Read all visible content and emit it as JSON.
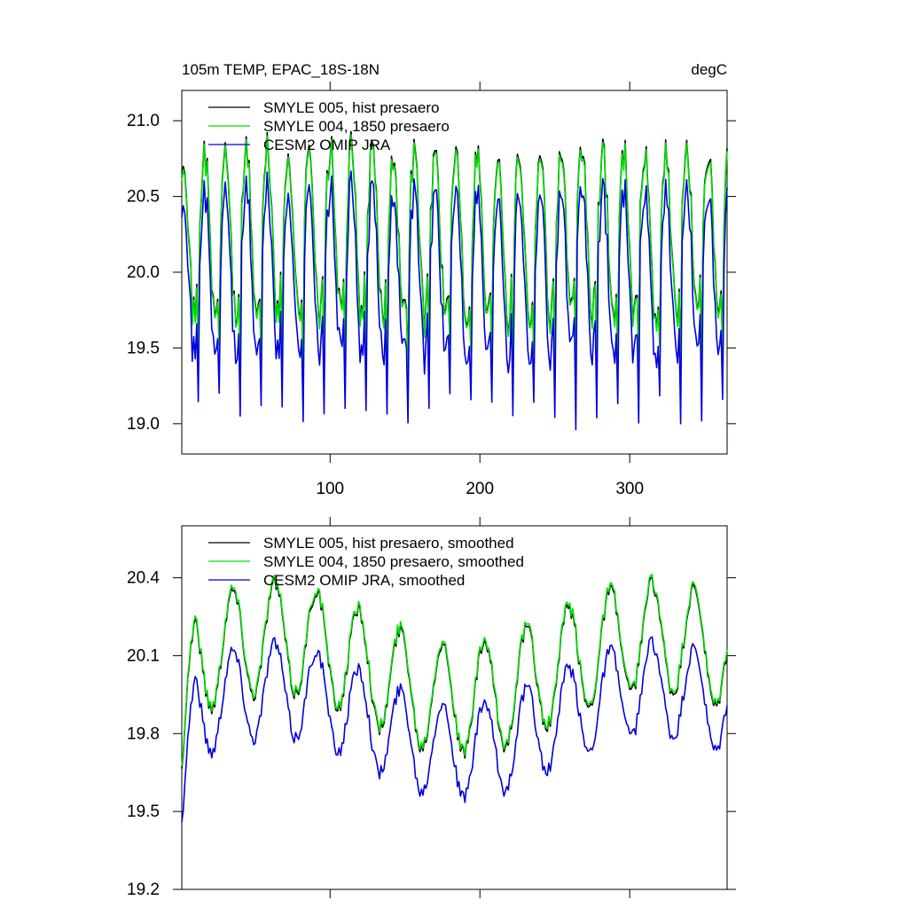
{
  "chart_data": [
    {
      "type": "line",
      "title_left": "105m TEMP, EPAC_18S-18N",
      "title_right": "degC",
      "xlabel": "",
      "ylabel": "",
      "xlim": [
        1,
        365
      ],
      "ylim": [
        18.8,
        21.2
      ],
      "xticks": [
        100,
        200,
        300
      ],
      "yticks": [
        19.0,
        19.5,
        20.0,
        20.5,
        21.0
      ],
      "ytick_labels": [
        "19.0",
        "19.5",
        "20.0",
        "20.5",
        "21.0"
      ],
      "legend_position": "top-left",
      "series": [
        {
          "name": "SMYLE 005, hist presaero",
          "color": "#000000",
          "style": "raw",
          "base": 20.0,
          "amp": 0.55,
          "offset": 0.26,
          "lowAmp": 0.85
        },
        {
          "name": "SMYLE 004, 1850 presaero",
          "color": "#00dd00",
          "style": "raw",
          "base": 20.0,
          "amp": 0.55,
          "offset": 0.24,
          "lowAmp": 0.85
        },
        {
          "name": "CESM2 OMIP JRA",
          "color": "#0000dd",
          "style": "raw",
          "base": 20.0,
          "amp": 0.55,
          "offset": 0.0,
          "lowAmp": 0.95
        }
      ]
    },
    {
      "type": "line",
      "title_left": "",
      "title_right": "",
      "xlabel": "",
      "ylabel": "",
      "xlim": [
        1,
        365
      ],
      "ylim": [
        19.2,
        20.6
      ],
      "xticks": [
        100,
        200,
        300
      ],
      "yticks": [
        19.2,
        19.5,
        19.8,
        20.1,
        20.4
      ],
      "ytick_labels": [
        "19.2",
        "19.5",
        "19.8",
        "20.1",
        "20.4"
      ],
      "legend_position": "top-left",
      "series": [
        {
          "name": "SMYLE 005, hist presaero, smoothed",
          "color": "#000000",
          "style": "smooth",
          "base": 20.0,
          "amp": 0.35,
          "offset": 0.05
        },
        {
          "name": "SMYLE 004, 1850 presaero, smoothed",
          "color": "#00dd00",
          "style": "smooth",
          "base": 20.0,
          "amp": 0.35,
          "offset": 0.06
        },
        {
          "name": "CESM2 OMIP JRA, smoothed",
          "color": "#0000dd",
          "style": "smooth",
          "base": 19.85,
          "amp": 0.3,
          "offset": 0.0
        }
      ]
    }
  ]
}
